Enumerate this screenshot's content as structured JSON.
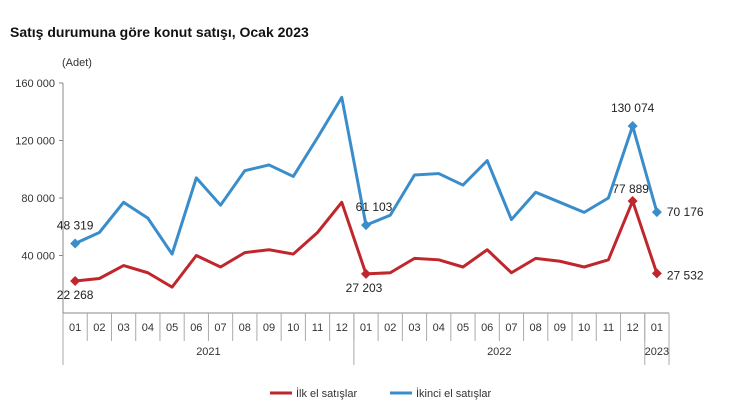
{
  "chart_data": {
    "type": "line",
    "title": "Satış durumuna göre konut satışı, Ocak 2023",
    "ylabel": "(Adet)",
    "ylim": [
      0,
      160000
    ],
    "yticks": [
      "40 000",
      "80 000",
      "120 000",
      "160 000"
    ],
    "ytick_values": [
      40000,
      80000,
      120000,
      160000
    ],
    "categories": [
      "01",
      "02",
      "03",
      "04",
      "05",
      "06",
      "07",
      "08",
      "09",
      "10",
      "11",
      "12",
      "01",
      "02",
      "03",
      "04",
      "05",
      "06",
      "07",
      "08",
      "09",
      "10",
      "11",
      "12",
      "01"
    ],
    "year_groups": [
      {
        "label": "2021",
        "count": 12
      },
      {
        "label": "2022",
        "count": 12
      },
      {
        "label": "2023",
        "count": 1
      }
    ],
    "grid": false,
    "legend_position": "bottom",
    "series": [
      {
        "name": "İlk el satışlar",
        "color": "#c0272d",
        "values": [
          22268,
          24000,
          33000,
          28000,
          18000,
          40000,
          32000,
          42000,
          44000,
          41000,
          56000,
          77000,
          27203,
          28000,
          38000,
          37000,
          32000,
          44000,
          28000,
          38000,
          36000,
          32000,
          37000,
          77889,
          27532
        ],
        "labels": {
          "0": "22 268",
          "12": "27 203",
          "23": "77 889",
          "24": "27 532"
        }
      },
      {
        "name": "İkinci el satışlar",
        "color": "#3a8dcb",
        "values": [
          48319,
          56000,
          77000,
          66000,
          41000,
          94000,
          75000,
          99000,
          103000,
          95000,
          122000,
          150000,
          61103,
          68000,
          96000,
          97000,
          89000,
          106000,
          65000,
          84000,
          77000,
          70000,
          80000,
          130074,
          70176
        ],
        "labels": {
          "0": "48 319",
          "12": "61 103",
          "23": "130 074",
          "24": "70 176"
        }
      }
    ]
  }
}
